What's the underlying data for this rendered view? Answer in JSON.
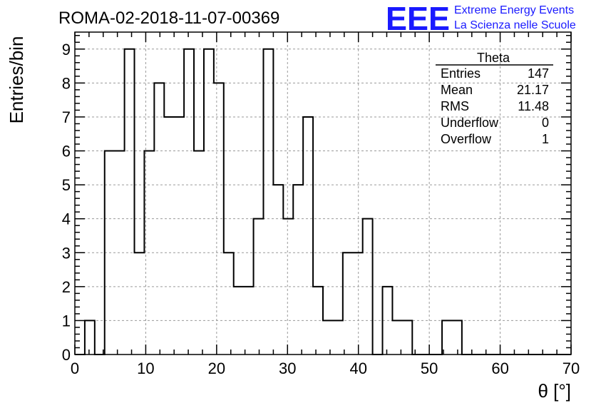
{
  "chart_data": {
    "type": "bar",
    "title": "ROMA-02-2018-11-07-00369",
    "xlabel": "θ [°]",
    "ylabel": "Entries/bin",
    "xlim": [
      0,
      70
    ],
    "ylim": [
      0,
      9.5
    ],
    "grid": true,
    "bin_width": 1.4,
    "bin_start": 0,
    "x_ticks": [
      0,
      10,
      20,
      30,
      40,
      50,
      60,
      70
    ],
    "y_ticks": [
      0,
      1,
      2,
      3,
      4,
      5,
      6,
      7,
      8,
      9
    ],
    "x_tick_labels": [
      "0",
      "10",
      "20",
      "30",
      "40",
      "50",
      "60",
      "70"
    ],
    "y_tick_labels": [
      "0",
      "1",
      "2",
      "3",
      "4",
      "5",
      "6",
      "7",
      "8",
      "9"
    ],
    "values": [
      0,
      1,
      0,
      6,
      6,
      9,
      3,
      6,
      8,
      7,
      7,
      9,
      6,
      9,
      8,
      3,
      2,
      2,
      4,
      9,
      5,
      4,
      5,
      7,
      2,
      1,
      1,
      3,
      3,
      4,
      0,
      2,
      1,
      1,
      0,
      0,
      0,
      1,
      1,
      0,
      0,
      0,
      0,
      0,
      0,
      0,
      0,
      0,
      0,
      0
    ]
  },
  "stats_box": {
    "title": "Theta",
    "rows": [
      {
        "label": "Entries",
        "value": "147"
      },
      {
        "label": "Mean",
        "value": "21.17"
      },
      {
        "label": "RMS",
        "value": "11.48"
      },
      {
        "label": "Underflow",
        "value": "0"
      },
      {
        "label": "Overflow",
        "value": "1"
      }
    ]
  },
  "logo": {
    "mark": "EEE",
    "line1": "Extreme Energy Events",
    "line2": "La Scienza nelle Scuole",
    "color": "#1a1aff"
  }
}
